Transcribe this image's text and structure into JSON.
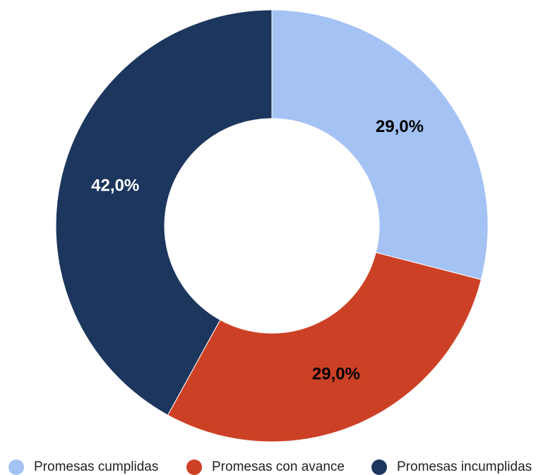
{
  "chart_data": {
    "type": "pie",
    "donut": true,
    "categories": [
      "Promesas cumplidas",
      "Promesas con avance",
      "Promesas incumplidas"
    ],
    "values": [
      29.0,
      29.0,
      42.0
    ],
    "data_labels": [
      "29,0%",
      "29,0%",
      "42,0%"
    ],
    "colors": [
      "#a4c2f4",
      "#cc4125",
      "#1c365e"
    ],
    "label_colors": [
      "#000000",
      "#000000",
      "#ffffff"
    ],
    "legend_position": "bottom",
    "start_angle": "top, clockwise"
  }
}
